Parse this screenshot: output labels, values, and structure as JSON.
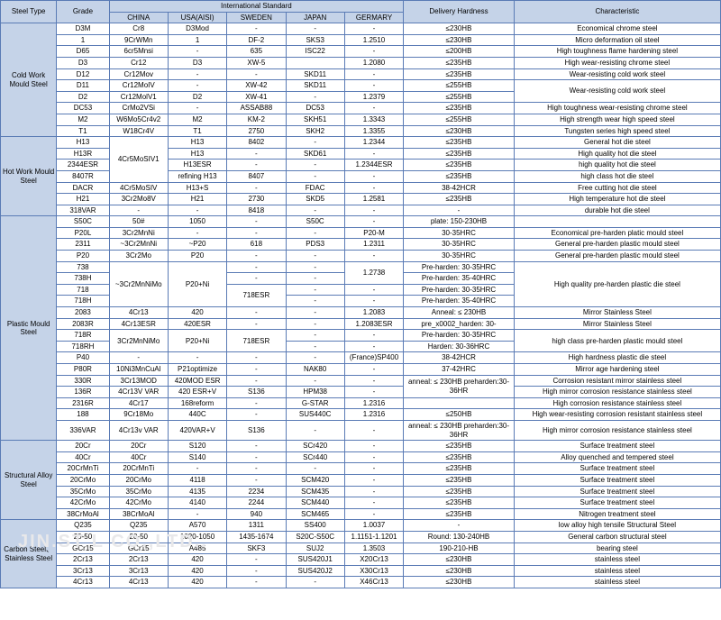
{
  "headers": {
    "steelType": "Steel Type",
    "grade": "Grade",
    "intl": "International Standard",
    "delivery": "Delivery Hardness",
    "char": "Characteristic",
    "china": "CHINA",
    "usa": "USA(AISI)",
    "sweden": "SWEDEN",
    "japan": "JAPAN",
    "germany": "GERMARY"
  },
  "watermark": "JIN.ST   L CO.,LTD..",
  "groups": [
    {
      "type": "Cold Work Mould Steel",
      "rows": [
        {
          "grade": "D3M",
          "china": "Cr8",
          "usa": "D3Mod",
          "sweden": "-",
          "japan": "-",
          "germany": "-",
          "del": "≤230HB",
          "char": "Economical chrome steel"
        },
        {
          "grade": "1",
          "china": "9CrWMn",
          "usa": "1",
          "sweden": "DF-2",
          "japan": "SKS3",
          "germany": "1.2510",
          "del": "≤230HB",
          "char": "Micro deformation oil steel"
        },
        {
          "grade": "D65",
          "china": "6cr5Mnsi",
          "usa": "-",
          "sweden": "635",
          "japan": "ISC22",
          "germany": "-",
          "del": "≤200HB",
          "char": "High toughness flame hardening steel"
        },
        {
          "grade": "D3",
          "china": "Cr12",
          "usa": "D3",
          "sweden": "XW-5",
          "japan": "",
          "germany": "1.2080",
          "del": "≤235HB",
          "char": "High wear-resisting chrome steel"
        },
        {
          "grade": "D12",
          "china": "Cr12Mov",
          "usa": "-",
          "sweden": "-",
          "japan": "SKD11",
          "germany": "-",
          "del": "≤235HB",
          "char": "Wear-resisting cold work steel"
        },
        {
          "grade": "D11",
          "china": "Cr12MoIV",
          "usa": "-",
          "sweden": "XW-42",
          "japan": "SKD11",
          "germany": "-",
          "del": "≤255HB",
          "char": "Wear-resisting cold work steel",
          "charSpan": 2
        },
        {
          "grade": "D2",
          "china": "Cr12MolV1",
          "usa": "D2",
          "sweden": "XW-41",
          "japan": "-",
          "germany": "1.2379",
          "del": "≤255HB"
        },
        {
          "grade": "DC53",
          "china": "CrMo2VSi",
          "usa": "-",
          "sweden": "ASSAB88",
          "japan": "DC53",
          "germany": "-",
          "del": "≤235HB",
          "char": "High toughness wear-resisting chrome steel"
        },
        {
          "grade": "M2",
          "china": "W6Mo5Cr4v2",
          "usa": "M2",
          "sweden": "KM-2",
          "japan": "SKH51",
          "germany": "1.3343",
          "del": "≤255HB",
          "char": "High strength wear high speed steel"
        },
        {
          "grade": "T1",
          "china": "W18Cr4V",
          "usa": "T1",
          "sweden": "2750",
          "japan": "SKH2",
          "germany": "1.3355",
          "del": "≤230HB",
          "char": "Tungsten series high speed steel"
        }
      ]
    },
    {
      "type": "Hot Work Mould Steel",
      "rows": [
        {
          "grade": "H13",
          "china": "4Cr5MoSIV1",
          "chinaSpan": 4,
          "usa": "H13",
          "sweden": "8402",
          "japan": "-",
          "germany": "1.2344",
          "del": "≤235HB",
          "char": "General hot die steel"
        },
        {
          "grade": "H13R",
          "usa": "H13",
          "sweden": "-",
          "japan": "SKD61",
          "germany": "-",
          "del": "≤235HB",
          "char": "High quality hot die steel"
        },
        {
          "grade": "2344ESR",
          "usa": "H13ESR",
          "sweden": "-",
          "japan": "-",
          "germany": "1.2344ESR",
          "del": "≤235HB",
          "char": "high quality hot die steel"
        },
        {
          "grade": "8407R",
          "usa": "refining H13",
          "sweden": "8407",
          "japan": "-",
          "germany": "-",
          "del": "≤235HB",
          "char": "high class hot die steel"
        },
        {
          "grade": "DACR",
          "china": "4Cr5MoSIV",
          "usa": "H13+S",
          "sweden": "-",
          "japan": "FDAC",
          "germany": "-",
          "del": "38-42HCR",
          "char": "Free cutting hot die steel"
        },
        {
          "grade": "H21",
          "china": "3Cr2Mo8V",
          "usa": "H21",
          "sweden": "2730",
          "japan": "SKD5",
          "germany": "1.2581",
          "del": "≤235HB",
          "char": "High temperature hot die steel"
        },
        {
          "grade": "318VAR",
          "china": "-",
          "usa": "-",
          "sweden": "8418",
          "japan": "-",
          "germany": "-",
          "del": "-",
          "char": "durable hot die steel"
        }
      ]
    },
    {
      "type": "Plastic Mould Steel",
      "rows": [
        {
          "grade": "S50C",
          "china": "50#",
          "usa": "1050",
          "sweden": "-",
          "japan": "S50C",
          "germany": "-",
          "del": "plate:  150-230HB",
          "char": ""
        },
        {
          "grade": "P20L",
          "china": "3Cr2MnNi",
          "usa": "-",
          "sweden": "-",
          "japan": "-",
          "germany": "P20-M",
          "del": "30-35HRC",
          "char": "Economical pre-harden platic mould steel"
        },
        {
          "grade": "2311",
          "china": "~3Cr2MnNi",
          "usa": "~P20",
          "sweden": "618",
          "japan": "PDS3",
          "germany": "1.2311",
          "del": "30-35HRC",
          "char": "General pre-harden plastic mould steel"
        },
        {
          "grade": "P20",
          "china": "3Cr2Mo",
          "usa": "P20",
          "sweden": "-",
          "japan": "-",
          "germany": "-",
          "del": "30-35HRC",
          "char": "General pre-harden plastic mould steel"
        },
        {
          "grade": "738",
          "china": "~3Cr2MnNiMo",
          "chinaSpan": 4,
          "usa": "P20+Ni",
          "usaSpan": 4,
          "sweden": "-",
          "japan": "-",
          "germany": "1.2738",
          "germanySpan": 2,
          "del": "Pre-harden:  30-35HRC",
          "char": "High quality pre-harden plastic die steel",
          "charSpan": 4
        },
        {
          "grade": "738H",
          "sweden": "-",
          "japan": "-",
          "del": "Pre-harden:  35-40HRC"
        },
        {
          "grade": "718",
          "sweden": "718ESR",
          "swedenSpan": 2,
          "japan": "-",
          "germany": "-",
          "del": "Pre-harden:  30-35HRC"
        },
        {
          "grade": "718H",
          "japan": "-",
          "germany": "-",
          "del": "Pre-harden:  35-40HRC"
        },
        {
          "grade": "2083",
          "china": "4Cr13",
          "usa": "420",
          "sweden": "-",
          "japan": "-",
          "germany": "1.2083",
          "del": "Anneal:  ≤ 230HB",
          "char": "Mirror Stainless Steel"
        },
        {
          "grade": "2083R",
          "china": "4Cr13ESR",
          "usa": "420ESR",
          "sweden": "-",
          "japan": "-",
          "germany": "1.2083ESR",
          "del": "pre_x0002_harden:  30-",
          "char": "Mirror Stainless Steel"
        },
        {
          "grade": "718R",
          "china": "3Cr2MnNiMo",
          "chinaSpan": 2,
          "usa": "P20+Ni",
          "usaSpan": 2,
          "sweden": "718ESR",
          "swedenSpan": 2,
          "japan": "-",
          "germany": "-",
          "del": "Pre-harden:  30-35HRC",
          "char": "high class pre-harden plastic mould steel",
          "charSpan": 2
        },
        {
          "grade": "718RH",
          "japan": "-",
          "germany": "-",
          "del": "Harden: 30-36HRC"
        },
        {
          "grade": "P40",
          "china": "-",
          "usa": "-",
          "sweden": "-",
          "japan": "-",
          "germany": "(France)SP400",
          "del": "38-42HCR",
          "char": "High hardness plastic die steel"
        },
        {
          "grade": "P80R",
          "china": "10Ni3MnCuAl",
          "usa": "P21optimize",
          "sweden": "-",
          "japan": "NAK80",
          "germany": "-",
          "del": "37-42HRC",
          "char": "Mirror age hardening steel"
        },
        {
          "grade": "330R",
          "china": "3Cr13MOD",
          "usa": "420MOD ESR",
          "sweden": "-",
          "japan": "-",
          "germany": "-",
          "del": "anneal: ≤ 230HB preharden:30-36HR",
          "delSpan": 2,
          "char": "Corrosion resistant mirror stainless steel"
        },
        {
          "grade": "136R",
          "china": "4Cr13V VAR",
          "usa": "420 ESR+V",
          "sweden": "S136",
          "japan": "HPM38",
          "germany": "-",
          "char": "High mirror corrosion resistance stainless steel"
        },
        {
          "grade": "2316R",
          "china": "4Cr17",
          "usa": "168reform",
          "sweden": "-",
          "japan": "G-STAR",
          "germany": "1.2316",
          "del": "",
          "char": "High corrosion resistance stainless steel"
        },
        {
          "grade": "188",
          "china": "9Cr18Mo",
          "usa": "440C",
          "sweden": "-",
          "japan": "SUS440C",
          "germany": "1.2316",
          "del": "≤250HB",
          "char": "High wear-resisting corrosion resistant stainless steel"
        },
        {
          "grade": "336VAR",
          "china": "4Cr13v VAR",
          "usa": "420VAR+V",
          "sweden": "S136",
          "japan": "-",
          "germany": "-",
          "del": "anneal: ≤ 230HB preharden:30-36HR",
          "char": "High mirror corrosion resistance stainless steel"
        }
      ]
    },
    {
      "type": "Structural Alloy Steel",
      "rows": [
        {
          "grade": "20Cr",
          "china": "20Cr",
          "usa": "S120",
          "sweden": "-",
          "japan": "SCr420",
          "germany": "-",
          "del": "≤235HB",
          "char": "Surface treatment steel"
        },
        {
          "grade": "40Cr",
          "china": "40Cr",
          "usa": "S140",
          "sweden": "-",
          "japan": "SCr440",
          "germany": "-",
          "del": "≤235HB",
          "char": "Alloy quenched and tempered steel"
        },
        {
          "grade": "20CrMnTi",
          "china": "20CrMnTi",
          "usa": "-",
          "sweden": "-",
          "japan": "-",
          "germany": "-",
          "del": "≤235HB",
          "char": "Surface treatment steel"
        },
        {
          "grade": "20CrMo",
          "china": "20CrMo",
          "usa": "4118",
          "sweden": "-",
          "japan": "SCM420",
          "germany": "-",
          "del": "≤235HB",
          "char": "Surface treatment steel"
        },
        {
          "grade": "35CrMo",
          "china": "35CrMo",
          "usa": "4135",
          "sweden": "2234",
          "japan": "SCM435",
          "germany": "-",
          "del": "≤235HB",
          "char": "Surface treatment steel"
        },
        {
          "grade": "42CrMo",
          "china": "42CrMo",
          "usa": "4140",
          "sweden": "2244",
          "japan": "SCM440",
          "germany": "-",
          "del": "≤235HB",
          "char": "Surface treatment steel"
        },
        {
          "grade": "38CrMoAl",
          "china": "38CrMoAl",
          "usa": "-",
          "sweden": "940",
          "japan": "SCM465",
          "germany": "-",
          "del": "≤235HB",
          "char": "Nitrogen treatment steel"
        }
      ]
    },
    {
      "type": "Carbon Steel、Stainless Steel",
      "rows": [
        {
          "grade": "Q235",
          "china": "Q235",
          "usa": "A570",
          "sweden": "1311",
          "japan": "SS400",
          "germany": "1.0037",
          "del": "-",
          "char": "low alloy high tensile Structural Steel"
        },
        {
          "grade": "20-50",
          "china": "20-50",
          "usa": "1020-1050",
          "sweden": "1435-1674",
          "japan": "S20C-S50C",
          "germany": "1.1151-1.1201",
          "del": "Round: 130-240HB",
          "char": "General carbon structural steel"
        },
        {
          "grade": "GCr15",
          "china": "GCr15",
          "usa": "A485",
          "sweden": "SKF3",
          "japan": "SUJ2",
          "germany": "1.3503",
          "del": "190-210-HB",
          "char": "bearing steel"
        },
        {
          "grade": "2Cr13",
          "china": "2Cr13",
          "usa": "420",
          "sweden": "-",
          "japan": "SUS420J1",
          "germany": "X20Cr13",
          "del": "≤230HB",
          "char": "stainless steel"
        },
        {
          "grade": "3Cr13",
          "china": "3Cr13",
          "usa": "420",
          "sweden": "-",
          "japan": "SUS420J2",
          "germany": "X30Cr13",
          "del": "≤230HB",
          "char": "stainless steel"
        },
        {
          "grade": "4Cr13",
          "china": "4Cr13",
          "usa": "420",
          "sweden": "-",
          "japan": "-",
          "germany": "X46Cr13",
          "del": "≤230HB",
          "char": "stainless steel"
        }
      ]
    }
  ]
}
